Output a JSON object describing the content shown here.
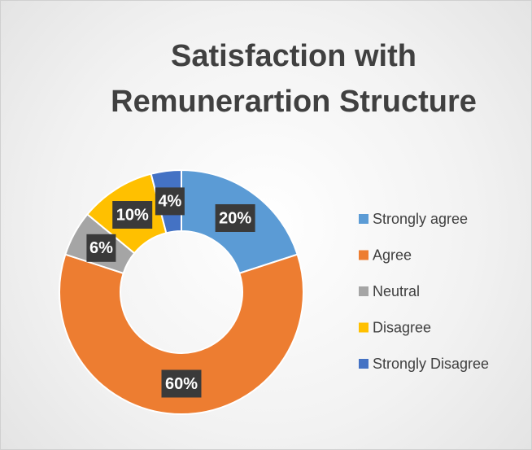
{
  "chart_data": {
    "type": "donut",
    "title": "Satisfaction with Remunerartion Structure",
    "categories": [
      "Strongly agree",
      "Agree",
      "Neutral",
      "Disagree",
      "Strongly Disagree"
    ],
    "values": [
      20,
      60,
      6,
      10,
      4
    ],
    "value_labels": [
      "20%",
      "60%",
      "6%",
      "10%",
      "4%"
    ],
    "colors": [
      "#5b9bd5",
      "#ed7d31",
      "#a5a5a5",
      "#ffc000",
      "#4472c4"
    ],
    "legend": "right"
  }
}
